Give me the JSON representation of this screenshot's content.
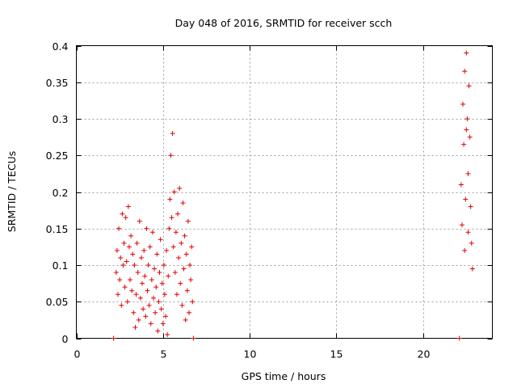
{
  "chart_data": {
    "type": "scatter",
    "title": "Day 048 of 2016, SRMTID for receiver scch",
    "xlabel": "GPS time / hours",
    "ylabel": "SRMTID / TECUs",
    "xlim": [
      0,
      24
    ],
    "ylim": [
      0,
      0.4
    ],
    "x_ticks": [
      0,
      5,
      10,
      15,
      20
    ],
    "x_tick_labels": [
      "0",
      "5",
      "10",
      "15",
      "20"
    ],
    "y_ticks": [
      0,
      0.05,
      0.1,
      0.15,
      0.2,
      0.25,
      0.3,
      0.35,
      0.4
    ],
    "y_tick_labels": [
      "0",
      "0.05",
      "0.1",
      "0.15",
      "0.2",
      "0.25",
      "0.3",
      "0.35",
      "0.4"
    ],
    "grid": true,
    "marker": "+",
    "color": "#e00000",
    "series": [
      {
        "name": "SRMTID",
        "points": [
          [
            2.15,
            0.0
          ],
          [
            2.3,
            0.09
          ],
          [
            2.35,
            0.12
          ],
          [
            2.4,
            0.06
          ],
          [
            2.45,
            0.15
          ],
          [
            2.5,
            0.08
          ],
          [
            2.55,
            0.11
          ],
          [
            2.6,
            0.045
          ],
          [
            2.65,
            0.17
          ],
          [
            2.7,
            0.1
          ],
          [
            2.75,
            0.13
          ],
          [
            2.8,
            0.07
          ],
          [
            2.85,
            0.165
          ],
          [
            2.9,
            0.105
          ],
          [
            2.95,
            0.05
          ],
          [
            3.0,
            0.18
          ],
          [
            3.05,
            0.125
          ],
          [
            3.1,
            0.08
          ],
          [
            3.15,
            0.14
          ],
          [
            3.2,
            0.065
          ],
          [
            3.25,
            0.115
          ],
          [
            3.3,
            0.035
          ],
          [
            3.35,
            0.1
          ],
          [
            3.4,
            0.015
          ],
          [
            3.45,
            0.06
          ],
          [
            3.5,
            0.13
          ],
          [
            3.55,
            0.09
          ],
          [
            3.6,
            0.025
          ],
          [
            3.65,
            0.16
          ],
          [
            3.7,
            0.055
          ],
          [
            3.75,
            0.11
          ],
          [
            3.8,
            0.075
          ],
          [
            3.85,
            0.04
          ],
          [
            3.9,
            0.12
          ],
          [
            3.95,
            0.085
          ],
          [
            4.0,
            0.03
          ],
          [
            4.05,
            0.15
          ],
          [
            4.1,
            0.065
          ],
          [
            4.15,
            0.1
          ],
          [
            4.2,
            0.045
          ],
          [
            4.25,
            0.125
          ],
          [
            4.3,
            0.02
          ],
          [
            4.35,
            0.08
          ],
          [
            4.4,
            0.145
          ],
          [
            4.45,
            0.055
          ],
          [
            4.5,
            0.095
          ],
          [
            4.55,
            0.035
          ],
          [
            4.6,
            0.07
          ],
          [
            4.65,
            0.115
          ],
          [
            4.7,
            0.01
          ],
          [
            4.75,
            0.05
          ],
          [
            4.8,
            0.09
          ],
          [
            4.85,
            0.135
          ],
          [
            4.9,
            0.04
          ],
          [
            4.95,
            0.075
          ],
          [
            5.0,
            0.02
          ],
          [
            5.05,
            0.1
          ],
          [
            5.1,
            0.06
          ],
          [
            5.15,
            0.03
          ],
          [
            5.2,
            0.12
          ],
          [
            5.25,
            0.005
          ],
          [
            5.3,
            0.085
          ],
          [
            5.35,
            0.15
          ],
          [
            5.4,
            0.19
          ],
          [
            5.45,
            0.25
          ],
          [
            5.5,
            0.165
          ],
          [
            5.55,
            0.28
          ],
          [
            5.6,
            0.125
          ],
          [
            5.65,
            0.2
          ],
          [
            5.7,
            0.09
          ],
          [
            5.75,
            0.145
          ],
          [
            5.8,
            0.06
          ],
          [
            5.85,
            0.17
          ],
          [
            5.9,
            0.11
          ],
          [
            5.95,
            0.205
          ],
          [
            6.0,
            0.075
          ],
          [
            6.05,
            0.13
          ],
          [
            6.1,
            0.045
          ],
          [
            6.15,
            0.185
          ],
          [
            6.2,
            0.095
          ],
          [
            6.25,
            0.14
          ],
          [
            6.3,
            0.025
          ],
          [
            6.35,
            0.115
          ],
          [
            6.4,
            0.065
          ],
          [
            6.45,
            0.16
          ],
          [
            6.5,
            0.035
          ],
          [
            6.55,
            0.1
          ],
          [
            6.6,
            0.08
          ],
          [
            6.65,
            0.125
          ],
          [
            6.7,
            0.05
          ],
          [
            6.75,
            0.0
          ],
          [
            22.1,
            0.0
          ],
          [
            22.2,
            0.21
          ],
          [
            22.25,
            0.155
          ],
          [
            22.3,
            0.32
          ],
          [
            22.35,
            0.265
          ],
          [
            22.4,
            0.365
          ],
          [
            22.45,
            0.19
          ],
          [
            22.5,
            0.39
          ],
          [
            22.55,
            0.3
          ],
          [
            22.6,
            0.225
          ],
          [
            22.65,
            0.345
          ],
          [
            22.7,
            0.275
          ],
          [
            22.75,
            0.18
          ],
          [
            22.8,
            0.13
          ],
          [
            22.85,
            0.095
          ],
          [
            22.6,
            0.145
          ],
          [
            22.5,
            0.285
          ],
          [
            22.4,
            0.12
          ]
        ]
      }
    ]
  }
}
